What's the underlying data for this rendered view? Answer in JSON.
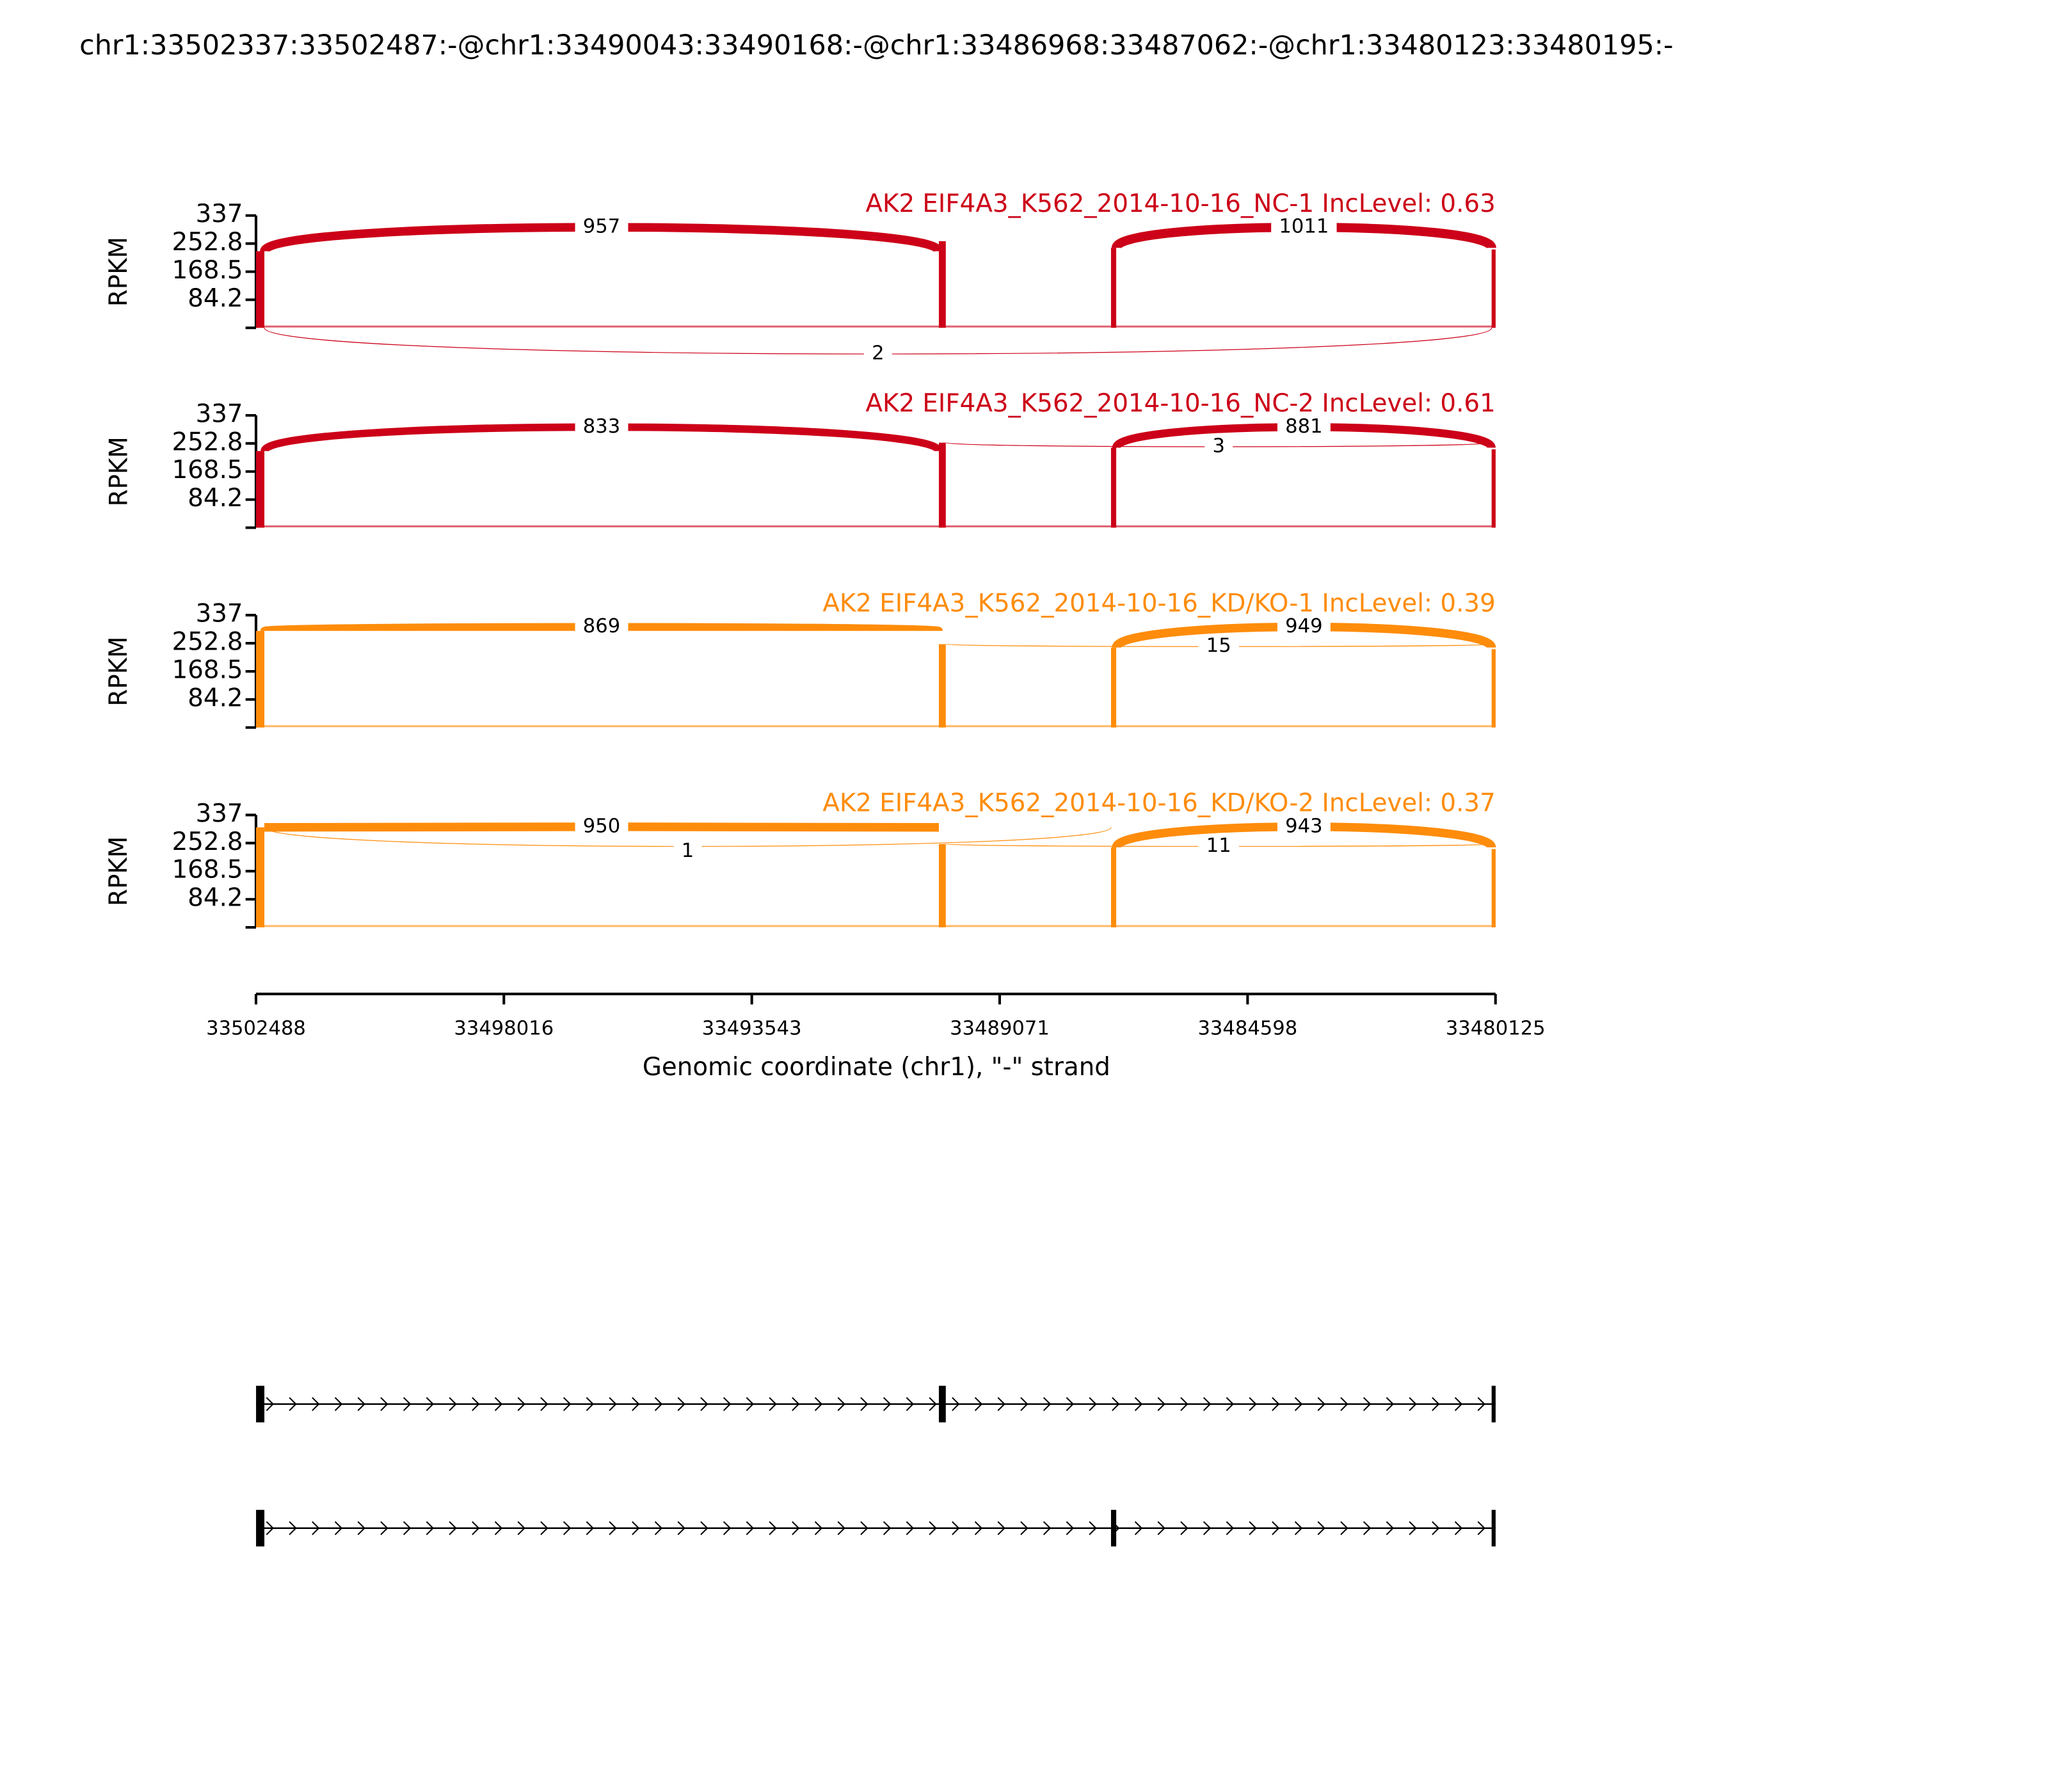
{
  "chart_data": {
    "type": "sashimi",
    "title": "chr1:33502337:33502487:-@chr1:33490043:33490168:-@chr1:33486968:33487062:-@chr1:33480123:33480195:-",
    "xlabel": "Genomic coordinate (chr1), \"-\" strand",
    "ylabel": "RPKM",
    "xlim": [
      33502488,
      33480125
    ],
    "xticks": [
      33502488,
      33498016,
      33493543,
      33489071,
      33484598,
      33480125
    ],
    "ylim": [
      0,
      337
    ],
    "yticks": [
      84.2,
      168.5,
      252.8,
      337
    ],
    "exons": [
      [
        33502487,
        33502337
      ],
      [
        33490168,
        33490043
      ],
      [
        33487062,
        33486968
      ],
      [
        33480195,
        33480123
      ]
    ],
    "transcripts": [
      [
        0,
        1,
        3
      ],
      [
        0,
        2,
        3
      ]
    ],
    "panels": [
      {
        "name": "AK2 EIF4A3_K562_2014-10-16_NC-1 IncLevel: 0.63",
        "color": "#cc0018",
        "coverage": [
          230,
          260,
          240,
          235
        ],
        "junctions": [
          {
            "from": 0,
            "to": 1,
            "value": 957,
            "side": "above"
          },
          {
            "from": 2,
            "to": 3,
            "value": 1011,
            "side": "above"
          },
          {
            "from": 0,
            "to": 3,
            "value": 2,
            "side": "below"
          }
        ]
      },
      {
        "name": "AK2 EIF4A3_K562_2014-10-16_NC-2 IncLevel: 0.61",
        "color": "#cc0018",
        "coverage": [
          230,
          255,
          240,
          235
        ],
        "junctions": [
          {
            "from": 0,
            "to": 1,
            "value": 833,
            "side": "above"
          },
          {
            "from": 1,
            "to": 3,
            "value": 3,
            "side": "above"
          },
          {
            "from": 2,
            "to": 3,
            "value": 881,
            "side": "above"
          }
        ]
      },
      {
        "name": "AK2 EIF4A3_K562_2014-10-16_KD/KO-1 IncLevel: 0.39",
        "color": "#ff8c0a",
        "coverage": [
          290,
          250,
          240,
          235
        ],
        "junctions": [
          {
            "from": 0,
            "to": 1,
            "value": 869,
            "side": "above"
          },
          {
            "from": 1,
            "to": 3,
            "value": 15,
            "side": "above"
          },
          {
            "from": 2,
            "to": 3,
            "value": 949,
            "side": "above"
          }
        ]
      },
      {
        "name": "AK2 EIF4A3_K562_2014-10-16_KD/KO-2 IncLevel: 0.37",
        "color": "#ff8c0a",
        "coverage": [
          300,
          250,
          240,
          235
        ],
        "junctions": [
          {
            "from": 0,
            "to": 1,
            "value": 950,
            "side": "above"
          },
          {
            "from": 0,
            "to": 2,
            "value": 1,
            "side": "above"
          },
          {
            "from": 1,
            "to": 3,
            "value": 11,
            "side": "above"
          },
          {
            "from": 2,
            "to": 3,
            "value": 943,
            "side": "above"
          }
        ]
      }
    ]
  }
}
